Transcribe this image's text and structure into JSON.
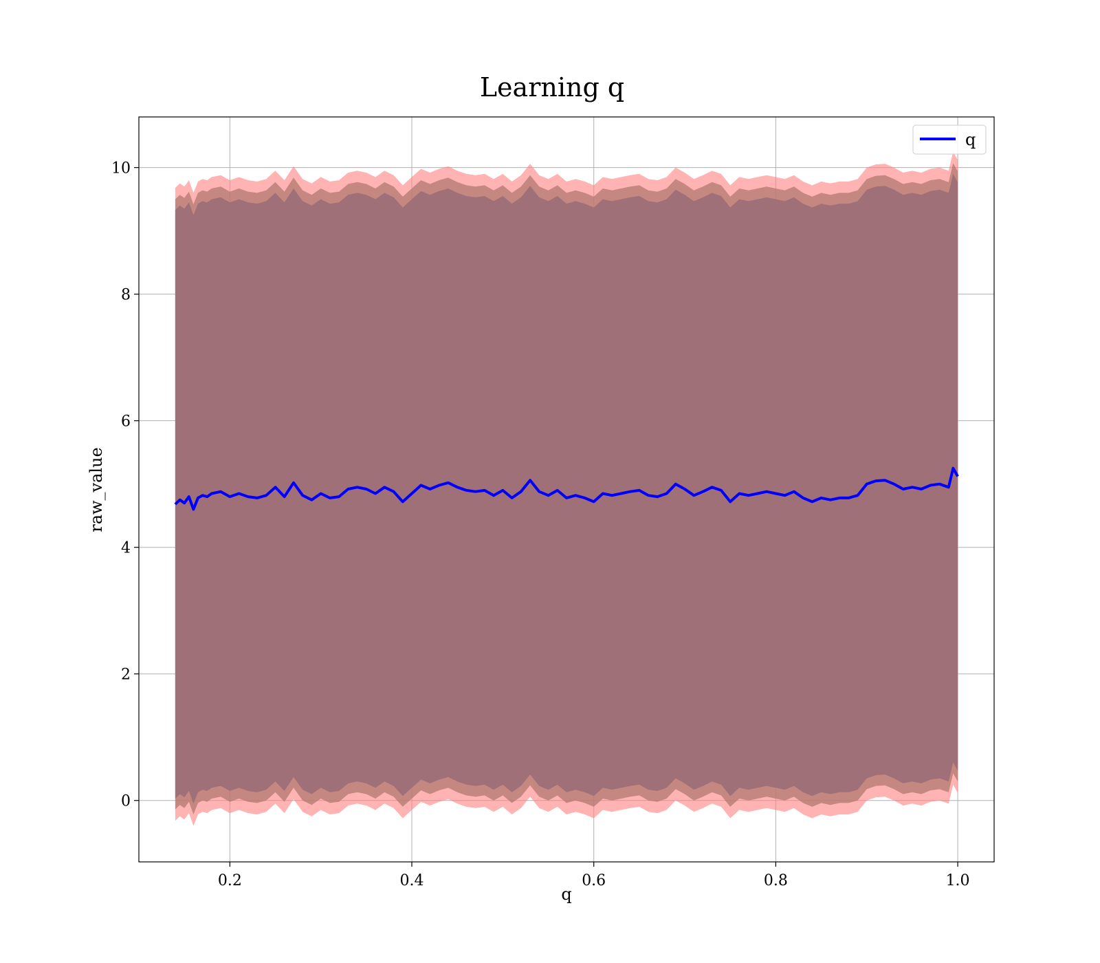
{
  "chart_data": {
    "type": "line",
    "title": "Learning q",
    "xlabel": "q",
    "ylabel": "raw_value",
    "xlim": [
      0.1,
      1.04
    ],
    "ylim": [
      -0.97,
      10.8
    ],
    "xticks": [
      0.2,
      0.4,
      0.6,
      0.8,
      1.0
    ],
    "xtick_labels": [
      "0.2",
      "0.4",
      "0.6",
      "0.8",
      "1.0"
    ],
    "yticks": [
      0,
      2,
      4,
      6,
      8,
      10
    ],
    "ytick_labels": [
      "0",
      "2",
      "4",
      "6",
      "8",
      "10"
    ],
    "grid": true,
    "legend": {
      "placement": "top-right",
      "entries": [
        "q"
      ]
    },
    "colors": {
      "line": "#0000ff",
      "outer_band": "#ff8080",
      "mid_band": "#b07a70",
      "inner_band": "#a07078"
    },
    "series": [
      {
        "name": "q",
        "x": [
          0.14,
          0.145,
          0.15,
          0.155,
          0.16,
          0.165,
          0.17,
          0.175,
          0.18,
          0.19,
          0.2,
          0.21,
          0.22,
          0.23,
          0.24,
          0.25,
          0.26,
          0.27,
          0.28,
          0.29,
          0.3,
          0.31,
          0.32,
          0.33,
          0.34,
          0.35,
          0.36,
          0.37,
          0.38,
          0.39,
          0.4,
          0.41,
          0.42,
          0.43,
          0.44,
          0.45,
          0.46,
          0.47,
          0.48,
          0.49,
          0.5,
          0.51,
          0.52,
          0.53,
          0.54,
          0.55,
          0.56,
          0.57,
          0.58,
          0.59,
          0.6,
          0.61,
          0.62,
          0.63,
          0.64,
          0.65,
          0.66,
          0.67,
          0.68,
          0.69,
          0.7,
          0.71,
          0.72,
          0.73,
          0.74,
          0.75,
          0.76,
          0.77,
          0.78,
          0.79,
          0.8,
          0.81,
          0.82,
          0.83,
          0.84,
          0.85,
          0.86,
          0.87,
          0.88,
          0.89,
          0.9,
          0.91,
          0.92,
          0.93,
          0.94,
          0.95,
          0.96,
          0.97,
          0.98,
          0.99,
          0.995,
          1.0
        ],
        "values": [
          4.68,
          4.75,
          4.7,
          4.8,
          4.6,
          4.78,
          4.82,
          4.8,
          4.85,
          4.88,
          4.8,
          4.85,
          4.8,
          4.78,
          4.82,
          4.95,
          4.8,
          5.02,
          4.82,
          4.75,
          4.85,
          4.78,
          4.8,
          4.92,
          4.95,
          4.92,
          4.85,
          4.95,
          4.88,
          4.72,
          4.85,
          4.98,
          4.92,
          4.98,
          5.02,
          4.95,
          4.9,
          4.88,
          4.9,
          4.82,
          4.9,
          4.78,
          4.88,
          5.06,
          4.88,
          4.82,
          4.9,
          4.78,
          4.82,
          4.78,
          4.72,
          4.85,
          4.82,
          4.85,
          4.88,
          4.9,
          4.82,
          4.8,
          4.85,
          5.0,
          4.92,
          4.82,
          4.88,
          4.95,
          4.9,
          4.72,
          4.85,
          4.82,
          4.85,
          4.88,
          4.85,
          4.82,
          4.88,
          4.78,
          4.72,
          4.78,
          4.75,
          4.78,
          4.78,
          4.82,
          5.0,
          5.05,
          5.06,
          5.0,
          4.92,
          4.95,
          4.92,
          4.98,
          5.0,
          4.95,
          5.25,
          5.12
        ]
      }
    ],
    "bands": [
      {
        "role": "outer",
        "lower_offset": -5.0,
        "upper_offset": 5.0
      },
      {
        "role": "mid",
        "lower_offset": -4.82,
        "upper_offset": 4.82
      },
      {
        "role": "inner",
        "lower_offset": -4.65,
        "upper_offset": 4.65
      }
    ]
  }
}
